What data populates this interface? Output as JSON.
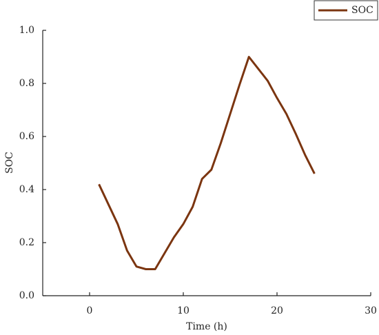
{
  "chart_data": {
    "type": "line",
    "xlabel": "Time (h)",
    "ylabel": "SOC",
    "x": [
      1,
      2,
      3,
      4,
      5,
      6,
      7,
      8,
      9,
      10,
      11,
      12,
      13,
      14,
      15,
      16,
      17,
      18,
      19,
      20,
      21,
      22,
      23,
      24
    ],
    "series": [
      {
        "name": "SOC",
        "color": "#7b3510",
        "values": [
          0.42,
          0.345,
          0.27,
          0.17,
          0.11,
          0.1,
          0.1,
          0.16,
          0.22,
          0.27,
          0.335,
          0.44,
          0.475,
          0.575,
          0.685,
          0.795,
          0.9,
          0.855,
          0.81,
          0.745,
          0.685,
          0.61,
          0.53,
          0.46
        ]
      }
    ],
    "xlim": [
      -5,
      30
    ],
    "xticks": [
      0,
      10,
      20,
      30
    ],
    "ylim": [
      0,
      1.0
    ],
    "yticks": [
      {
        "value": 0,
        "label": "0.0"
      },
      0.2,
      0.4,
      0.6,
      0.8,
      {
        "value": 1.0,
        "label": "1.0"
      }
    ],
    "legend": "upper right",
    "grid": false
  }
}
